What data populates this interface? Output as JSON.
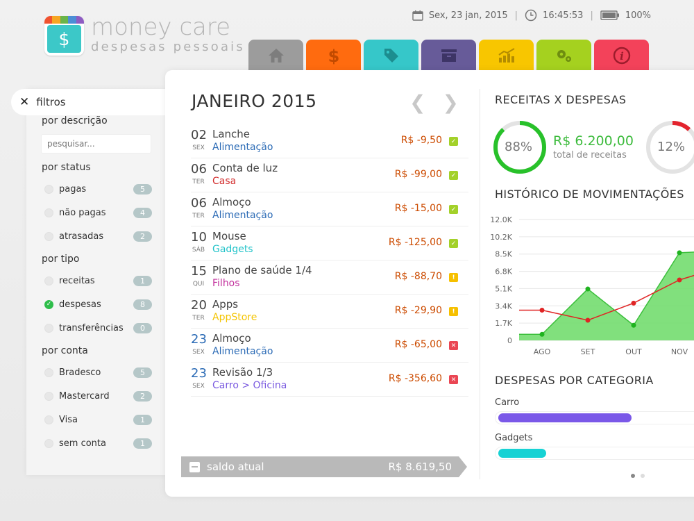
{
  "brand": {
    "title": "money care",
    "subtitle": "despesas pessoais",
    "logo_symbol": "$",
    "logo_stripe_colors": [
      "#f0522f",
      "#f6a623",
      "#6ab54a",
      "#4c8ed6",
      "#8e5cc2"
    ]
  },
  "status": {
    "date": "Sex, 23 jan, 2015",
    "time": "16:45:53",
    "battery": "100%"
  },
  "tabs": [
    {
      "name": "home",
      "icon": "home-icon",
      "color": "#9c9c9c"
    },
    {
      "name": "money",
      "icon": "dollar-icon",
      "color": "#ff6b0f"
    },
    {
      "name": "tags",
      "icon": "tag-icon",
      "color": "#36c7c9"
    },
    {
      "name": "archive",
      "icon": "archive-icon",
      "color": "#675b99"
    },
    {
      "name": "reports",
      "icon": "chart-icon",
      "color": "#f8c600"
    },
    {
      "name": "settings",
      "icon": "gears-icon",
      "color": "#a5d11f"
    },
    {
      "name": "info",
      "icon": "info-icon",
      "color": "#f3425a"
    }
  ],
  "sidebar": {
    "toggle_label": "filtros",
    "by_description": "por descrição",
    "search_placeholder": "pesquisar...",
    "by_status": "por status",
    "status_options": [
      {
        "label": "pagas",
        "count": "5"
      },
      {
        "label": "não pagas",
        "count": "4"
      },
      {
        "label": "atrasadas",
        "count": "2"
      }
    ],
    "by_type": "por tipo",
    "type_options": [
      {
        "label": "receitas",
        "count": "1",
        "selected": false
      },
      {
        "label": "despesas",
        "count": "8",
        "selected": true
      },
      {
        "label": "transferências",
        "count": "0",
        "selected": false
      }
    ],
    "by_account": "por conta",
    "account_options": [
      {
        "label": "Bradesco",
        "count": "5"
      },
      {
        "label": "Mastercard",
        "count": "2"
      },
      {
        "label": "Visa",
        "count": "1"
      },
      {
        "label": "sem conta",
        "count": "1"
      }
    ]
  },
  "main": {
    "month_title": "JANEIRO 2015",
    "transactions": [
      {
        "day": "02",
        "weekday": "SEX",
        "desc": "Lanche",
        "category": "Alimentação",
        "cat_color": "#2a6ab5",
        "amount": "R$ -9,50",
        "status": "paid",
        "day_blue": false
      },
      {
        "day": "06",
        "weekday": "TER",
        "desc": "Conta de luz",
        "category": "Casa",
        "cat_color": "#d22c2c",
        "amount": "R$ -99,00",
        "status": "paid",
        "day_blue": false
      },
      {
        "day": "06",
        "weekday": "TER",
        "desc": "Almoço",
        "category": "Alimentação",
        "cat_color": "#2a6ab5",
        "amount": "R$ -15,00",
        "status": "paid",
        "day_blue": false
      },
      {
        "day": "10",
        "weekday": "SÁB",
        "desc": "Mouse",
        "category": "Gadgets",
        "cat_color": "#21c3c9",
        "amount": "R$ -125,00",
        "status": "paid",
        "day_blue": false
      },
      {
        "day": "15",
        "weekday": "QUI",
        "desc": "Plano de saúde 1/4",
        "category": "Filhos",
        "cat_color": "#c2309c",
        "amount": "R$ -88,70",
        "status": "pending",
        "day_blue": false
      },
      {
        "day": "20",
        "weekday": "TER",
        "desc": "Apps",
        "category": "AppStore",
        "cat_color": "#f4c400",
        "amount": "R$ -29,90",
        "status": "pending",
        "day_blue": false
      },
      {
        "day": "23",
        "weekday": "SEX",
        "desc": "Almoço",
        "category": "Alimentação",
        "cat_color": "#2a6ab5",
        "amount": "R$ -65,00",
        "status": "late",
        "day_blue": true
      },
      {
        "day": "23",
        "weekday": "SEX",
        "desc": "Revisão 1/3",
        "category": "Carro > Oficina",
        "cat_color": "#7a5ae0",
        "amount": "R$ -356,60",
        "status": "late",
        "day_blue": true
      }
    ],
    "status_colors": {
      "paid": "#a3d12a",
      "pending": "#f6c000",
      "late": "#ea4653"
    },
    "balance_label": "saldo atual",
    "balance_value": "R$ 8.619,50"
  },
  "right": {
    "income_vs_expenses_title": "RECEITAS X DESPESAS",
    "income_pct": 88,
    "income_pct_label": "88%",
    "income_value": "R$ 6.200,00",
    "income_sub": "total de receitas",
    "expense_pct": 12,
    "expense_pct_label": "12%",
    "history_title": "HISTÓRICO DE MOVIMENTAÇÕES",
    "categories_title": "DESPESAS POR CATEGORIA",
    "categories": [
      {
        "label": "Carro",
        "fraction": 0.64,
        "color": "#7a58e8"
      },
      {
        "label": "Gadgets",
        "fraction": 0.23,
        "color": "#17d2d4"
      }
    ]
  },
  "chart_data": {
    "type": "area",
    "categories": [
      "AGO",
      "SET",
      "OUT",
      "NOV"
    ],
    "y_ticks": [
      "0",
      "1.7K",
      "3.4K",
      "5.1K",
      "6.8K",
      "8.5K",
      "10.2K",
      "12.0K"
    ],
    "ylim": [
      0,
      12000
    ],
    "series": [
      {
        "kind": "area",
        "color": "#3cbf3c",
        "x_offsets": [
          -0.5,
          0,
          1,
          2,
          3,
          3.5
        ],
        "values": [
          600,
          600,
          5100,
          1500,
          8700,
          8800
        ]
      },
      {
        "kind": "line",
        "color": "#e02424",
        "x_offsets": [
          -0.5,
          0,
          1,
          2,
          3,
          3.5
        ],
        "values": [
          3000,
          3000,
          2000,
          3700,
          6000,
          6700
        ]
      }
    ],
    "grid": true
  }
}
